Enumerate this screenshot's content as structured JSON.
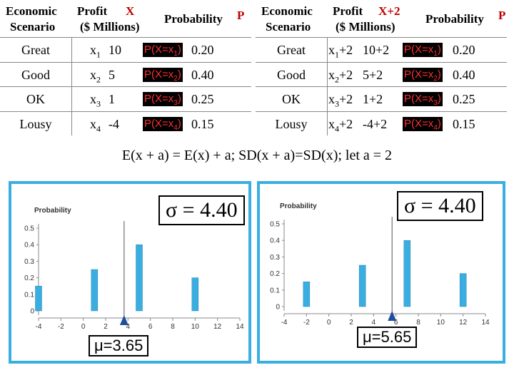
{
  "left_table": {
    "header": {
      "col1_line1": "Economic",
      "col1_line2": "Scenario",
      "col2_line1": "Profit",
      "col2_symbol": "X",
      "col2_line2": "($ Millions)",
      "col3": "Probability",
      "col3_symbol": "P"
    },
    "rows": [
      {
        "scenario": "Great",
        "var": "x",
        "sub": "1",
        "value": "10",
        "p_prefix": "P(X=x",
        "p_sub": "1",
        "p_suffix": ")",
        "prob": "0.20"
      },
      {
        "scenario": "Good",
        "var": "x",
        "sub": "2",
        "value": "5",
        "p_prefix": "P(X=x",
        "p_sub": "2",
        "p_suffix": ")",
        "prob": "0.40"
      },
      {
        "scenario": "OK",
        "var": "x",
        "sub": "3",
        "value": "1",
        "p_prefix": "P(X=x",
        "p_sub": "3",
        "p_suffix": ")",
        "prob": "0.25"
      },
      {
        "scenario": "Lousy",
        "var": "x",
        "sub": "4",
        "value": "-4",
        "p_prefix": "P(X=x",
        "p_sub": "4",
        "p_suffix": ")",
        "prob": "0.15"
      }
    ]
  },
  "right_table": {
    "header": {
      "col1_line1": "Economic",
      "col1_line2": "Scenario",
      "col2_line1": "Profit",
      "col2_symbol": "X+2",
      "col2_line2": "($ Millions)",
      "col3": "Probability",
      "col3_symbol": "P"
    },
    "rows": [
      {
        "scenario": "Great",
        "var": "x",
        "sub": "1",
        "plus": "+2",
        "value": "10+2",
        "p_prefix": "P(X=x",
        "p_sub": "1",
        "p_suffix": ")",
        "prob": "0.20"
      },
      {
        "scenario": "Good",
        "var": "x",
        "sub": "2",
        "plus": "+2",
        "value": "5+2",
        "p_prefix": "P(X=x",
        "p_sub": "2",
        "p_suffix": ")",
        "prob": "0.40"
      },
      {
        "scenario": "OK",
        "var": "x",
        "sub": "3",
        "plus": "+2",
        "value": "1+2",
        "p_prefix": "P(X=x",
        "p_sub": "3",
        "p_suffix": ")",
        "prob": "0.25"
      },
      {
        "scenario": "Lousy",
        "var": "x",
        "sub": "4",
        "plus": "+2",
        "value": "-4+2",
        "p_prefix": "P(X=x",
        "p_sub": "4",
        "p_suffix": ")",
        "prob": "0.15"
      }
    ]
  },
  "formula": "E(x + a) = E(x) + a; SD(x + a)=SD(x); let a = 2",
  "colors": {
    "bar": "#3aaee0",
    "marker": "#1f4e9c",
    "panel_border": "#3aaee0",
    "prob_box_text": "#ff3030"
  },
  "chart_data": [
    {
      "type": "bar",
      "ylabel": "Probability",
      "x": [
        -4,
        1,
        5,
        10
      ],
      "values": [
        0.15,
        0.25,
        0.4,
        0.2
      ],
      "xlim": [
        -4,
        14
      ],
      "ylim": [
        0,
        0.5
      ],
      "xticks": [
        "-4",
        "-2",
        "0",
        "2",
        "4",
        "6",
        "8",
        "10",
        "12",
        "14"
      ],
      "yticks": [
        "0",
        "0.1",
        "0.2",
        "0.3",
        "0.4",
        "0.5"
      ],
      "mean": 3.65,
      "sigma_label": "σ = 4.40",
      "mu_label": "μ=3.65"
    },
    {
      "type": "bar",
      "ylabel": "Probability",
      "x": [
        -2,
        3,
        7,
        12
      ],
      "values": [
        0.15,
        0.25,
        0.4,
        0.2
      ],
      "xlim": [
        -4,
        14
      ],
      "ylim": [
        0,
        0.5
      ],
      "xticks": [
        "-4",
        "-2",
        "0",
        "2",
        "4",
        "6",
        "8",
        "10",
        "12",
        "14"
      ],
      "yticks": [
        "0",
        "0.1",
        "0.2",
        "0.3",
        "0.4",
        "0.5"
      ],
      "mean": 5.65,
      "sigma_label": "σ = 4.40",
      "mu_label": "μ=5.65"
    }
  ]
}
